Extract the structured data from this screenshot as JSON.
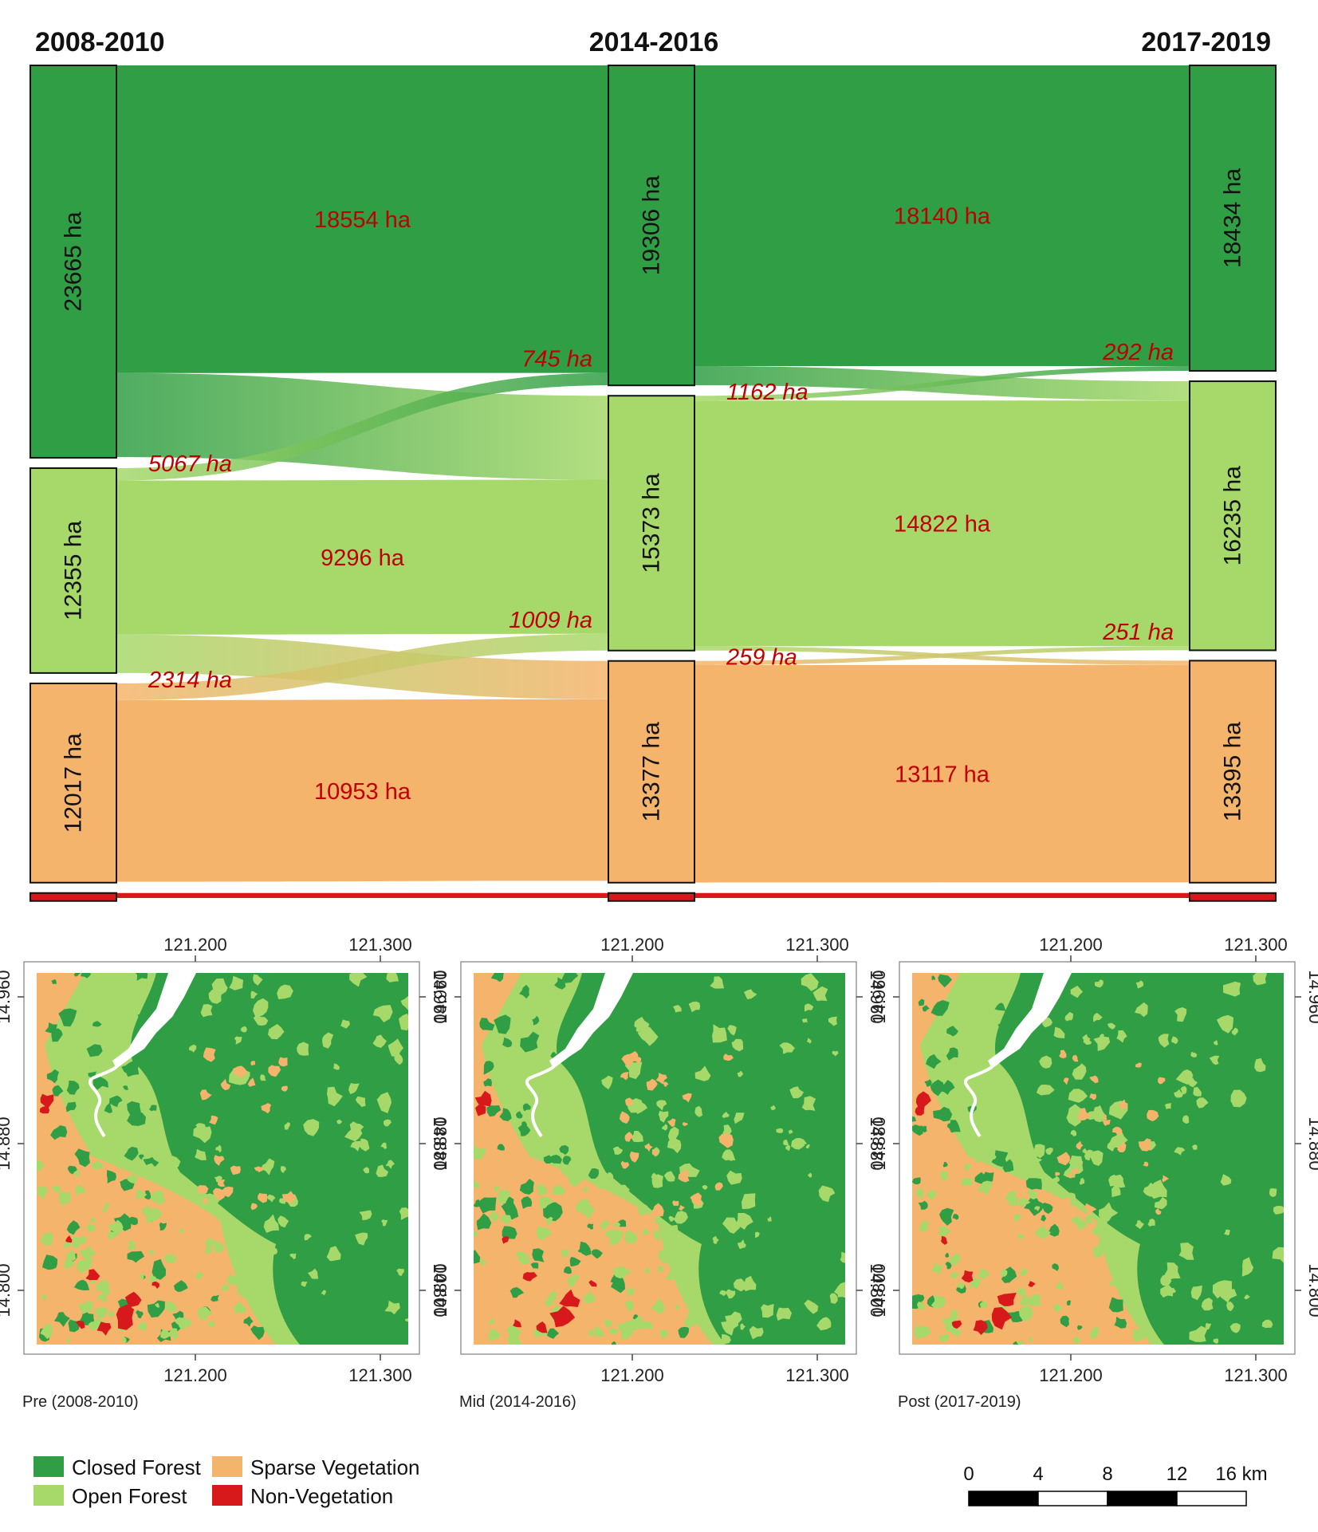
{
  "sankey": {
    "periods": [
      "2008-2010",
      "2014-2016",
      "2017-2019"
    ],
    "nodes": [
      [
        {
          "id": "cf",
          "label": "23665 ha",
          "value": 23665
        },
        {
          "id": "of",
          "label": "12355 ha",
          "value": 12355
        },
        {
          "id": "sv",
          "label": "12017 ha",
          "value": 12017
        },
        {
          "id": "nv",
          "label": "",
          "value": 300
        }
      ],
      [
        {
          "id": "cf",
          "label": "19306 ha",
          "value": 19306
        },
        {
          "id": "of",
          "label": "15373 ha",
          "value": 15373
        },
        {
          "id": "sv",
          "label": "13377 ha",
          "value": 13377
        },
        {
          "id": "nv",
          "label": "",
          "value": 300
        }
      ],
      [
        {
          "id": "cf",
          "label": "18434 ha",
          "value": 18434
        },
        {
          "id": "of",
          "label": "16235 ha",
          "value": 16235
        },
        {
          "id": "sv",
          "label": "13395 ha",
          "value": 13395
        },
        {
          "id": "nv",
          "label": "",
          "value": 300
        }
      ]
    ],
    "flows": [
      [
        {
          "from": "cf",
          "to": "cf",
          "value": 18554,
          "label": "18554 ha",
          "italic": false
        },
        {
          "from": "cf",
          "to": "of",
          "value": 5067,
          "label": "5067 ha",
          "italic": true
        },
        {
          "from": "of",
          "to": "cf",
          "value": 745,
          "label": "745 ha",
          "italic": true
        },
        {
          "from": "of",
          "to": "of",
          "value": 9296,
          "label": "9296 ha",
          "italic": false
        },
        {
          "from": "of",
          "to": "sv",
          "value": 2314,
          "label": "2314 ha",
          "italic": true
        },
        {
          "from": "sv",
          "to": "of",
          "value": 1009,
          "label": "1009 ha",
          "italic": true
        },
        {
          "from": "sv",
          "to": "sv",
          "value": 10953,
          "label": "10953 ha",
          "italic": false
        },
        {
          "from": "nv",
          "to": "nv",
          "value": 300,
          "label": "",
          "italic": false
        }
      ],
      [
        {
          "from": "cf",
          "to": "cf",
          "value": 18140,
          "label": "18140 ha",
          "italic": false
        },
        {
          "from": "cf",
          "to": "of",
          "value": 1162,
          "label": "1162 ha",
          "italic": true
        },
        {
          "from": "of",
          "to": "cf",
          "value": 292,
          "label": "292 ha",
          "italic": true
        },
        {
          "from": "of",
          "to": "of",
          "value": 14822,
          "label": "14822 ha",
          "italic": false
        },
        {
          "from": "of",
          "to": "sv",
          "value": 259,
          "label": "259 ha",
          "italic": true
        },
        {
          "from": "sv",
          "to": "of",
          "value": 251,
          "label": "251 ha",
          "italic": true
        },
        {
          "from": "sv",
          "to": "sv",
          "value": 13117,
          "label": "13117 ha",
          "italic": false
        },
        {
          "from": "nv",
          "to": "nv",
          "value": 300,
          "label": "",
          "italic": false
        }
      ]
    ]
  },
  "maps": [
    {
      "caption": "Pre (2008-2010)",
      "variant": 0
    },
    {
      "caption": "Mid (2014-2016)",
      "variant": 1
    },
    {
      "caption": "Post (2017-2019)",
      "variant": 2
    }
  ],
  "map_axes": {
    "x_ticks": [
      "121.200",
      "121.300"
    ],
    "y_ticks": [
      "14.960",
      "14.880",
      "14.800"
    ]
  },
  "legend": [
    {
      "id": "cf",
      "label": "Closed Forest",
      "color": "#2f9e45"
    },
    {
      "id": "sv",
      "label": "Sparse Vegetation",
      "color": "#f5b46b"
    },
    {
      "id": "of",
      "label": "Open Forest",
      "color": "#a6d96a"
    },
    {
      "id": "nv",
      "label": "Non-Vegetation",
      "color": "#d7191c"
    }
  ],
  "scale_bar": {
    "ticks": [
      "0",
      "4",
      "8",
      "12"
    ],
    "end_label": "16 km"
  },
  "colors": {
    "cf": "#2f9e45",
    "of": "#a6d96a",
    "sv": "#f5b46b",
    "nv": "#d7191c",
    "flow_label": "#c00000",
    "water": "#ffffff"
  }
}
